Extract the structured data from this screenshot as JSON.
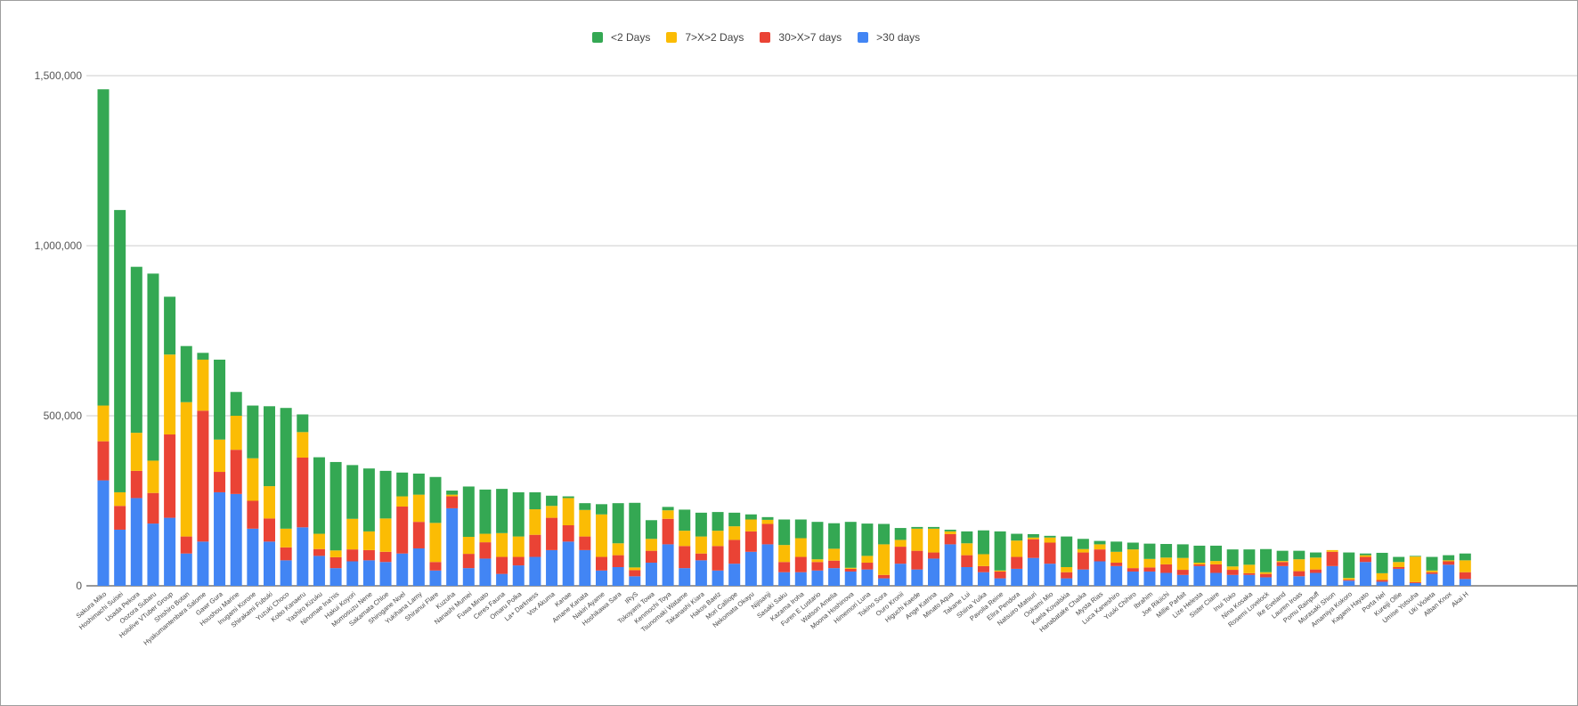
{
  "chart_data": {
    "type": "bar",
    "stacked": true,
    "title": "",
    "xlabel": "",
    "ylabel": "",
    "ylim": [
      0,
      1500000
    ],
    "yticks": [
      0,
      500000,
      1000000,
      1500000
    ],
    "ytick_labels": [
      "0",
      "500,000",
      "1,000,000",
      "1,500,000"
    ],
    "grid": true,
    "legend_position": "top-center",
    "categories": [
      "Sakura Miko",
      "Hoshimachi Suisei",
      "Usada Pekora",
      "Oozora Subaru",
      "Hololive VTuber Group",
      "Shishiro Botan",
      "Hyakumantenbara Salome",
      "Gawr Gura",
      "Houshou Marine",
      "Inugami Korone",
      "Shirakami Fubuki",
      "Yuzuki Choco",
      "Kobo Kanaeru",
      "Yashiro Kizuku",
      "Ninomae Ina'nis",
      "Hakui Koyori",
      "Momosuzu Nene",
      "Sakamata Chloe",
      "Shirogane Noel",
      "Yukihana Lamy",
      "Shiranui Flare",
      "Kuzuha",
      "Nanashi Mumei",
      "Fuwa Minato",
      "Ceres Fauna",
      "Omaru Polka",
      "La+ Darkness",
      "Vox Akuma",
      "Kanae",
      "Amane Kanata",
      "Nakiri Ayame",
      "Hoshikawa Sara",
      "IRyS",
      "Tokoyami Towa",
      "Kenmochi Toya",
      "Tsunomaki Watame",
      "Takanashi Kiara",
      "Hakos Baelz",
      "Mori Calliope",
      "Nekomata Okayu",
      "Nijisanji",
      "Sasaki Saku",
      "Kazama Iroha",
      "Furen E Lustario",
      "Watson Amelia",
      "Moona Hoshinova",
      "Himemori Luna",
      "Tokino Sora",
      "Ouro Kronii",
      "Higuchi Kaede",
      "Ange Katrina",
      "Minato Aqua",
      "Takane Lui",
      "Shiina Yuika",
      "Pavolia Reine",
      "Elira Pendora",
      "Natsuiro Matsuri",
      "Ookami Mio",
      "Kaela Kovalskia",
      "Hanabatake Chaika",
      "Mysta Rias",
      "Luca Kaneshiro",
      "Yuuki Chihiro",
      "Ibrahim",
      "Joe Rikiichi",
      "Millie Parfait",
      "Lize Helesta",
      "Sister Claire",
      "Inui Toko",
      "Nina Kosaka",
      "Rosemi Lovelock",
      "Ike Eveland",
      "Lauren Iroas",
      "Pomu Rainpuff",
      "Murasaki Shion",
      "Amamiya Kokoro",
      "Kagami Hayato",
      "Porta Nel",
      "Kureiji Ollie",
      "Umise Yotsuha",
      "Uki Violeta",
      "Alban Knox",
      "Akai Haato"
    ],
    "xtick_labels": [
      "Sakura Miko",
      "Hoshimachi Suisei",
      "Usada Pekora",
      "Oozora Subaru",
      "Hololive VTuber Group",
      "Shishiro Botan",
      "Hyakumantenbara Salome",
      "Gawr Gura",
      "Houshou Marine",
      "Inugami Korone",
      "Shirakami Fubuki",
      "Yuzuki Choco",
      "Kobo Kanaeru",
      "Yashiro Kizuku",
      "Ninomae Ina'nis",
      "Hakui Koyori",
      "Momosuzu Nene",
      "Sakamata Chloe",
      "Shirogane Noel",
      "Yukihana Lamy",
      "Shiranui Flare",
      "Kuzuha",
      "Nanashi Mumei",
      "Fuwa Minato",
      "Ceres Fauna",
      "Omaru Polka",
      "La+ Darkness",
      "Vox Akuma",
      "Kanae",
      "Amane Kanata",
      "Nakiri Ayame",
      "Hoshikawa Sara",
      "IRyS",
      "Tokoyami Towa",
      "Kenmochi Toya",
      "Tsunomaki Watame",
      "Takanashi Kiara",
      "Hakos Baelz",
      "Mori Calliope",
      "Nekomata Okayu",
      "Nijisanji",
      "Sasaki Saku",
      "Kazama Iroha",
      "Furen E Lustario",
      "Watson Amelia",
      "Moona Hoshinova",
      "Himemori Luna",
      "Tokino Sora",
      "Ouro Kronii",
      "Higuchi Kaede",
      "Ange Katrina",
      "Minato Aqua",
      "Takane Lui",
      "Shiina Yuika",
      "Pavolia Reine",
      "Elira Pendora",
      "Natsuiro Matsuri",
      "Ookami Mio",
      "Kaela Kovalskia",
      "Hanabatake Chaika",
      "Mysta Rias",
      "Luca Kaneshiro",
      "Yuuki Chihiro",
      "Ibrahim",
      "Joe Rikiichi",
      "Millie Parfait",
      "Lize Helesta",
      "Sister Claire",
      "Inui Toko",
      "Nina Kosaka",
      "Rosemi Lovelock",
      "Ike Eveland",
      "Lauren Iroas",
      "Pomu Rainpuff",
      "Murasaki Shion",
      "Amamiya Kokoro",
      "Kagami Hayato",
      "Porta Nel",
      "Kureiji Ollie",
      "Umise Yotsuha",
      "Uki Violeta",
      "Alban Knox",
      "Akai H"
    ],
    "series": [
      {
        "name": ">30 days",
        "color": "#4285f4",
        "values": [
          310000,
          165000,
          258000,
          183000,
          200000,
          95000,
          130000,
          275000,
          270000,
          168000,
          130000,
          75000,
          172000,
          88000,
          52000,
          72000,
          75000,
          70000,
          95000,
          110000,
          45000,
          228000,
          52000,
          80000,
          35000,
          60000,
          85000,
          105000,
          130000,
          105000,
          45000,
          55000,
          28000,
          68000,
          122000,
          52000,
          75000,
          45000,
          65000,
          100000,
          122000,
          40000,
          40000,
          45000,
          52000,
          42000,
          48000,
          22000,
          65000,
          48000,
          80000,
          122000,
          55000,
          40000,
          22000,
          50000,
          82000,
          65000,
          22000,
          48000,
          72000,
          58000,
          42000,
          42000,
          38000,
          32000,
          58000,
          38000,
          32000,
          32000,
          25000,
          58000,
          28000,
          38000,
          58000,
          15000,
          70000,
          12000,
          50000,
          8000,
          35000,
          62000,
          20000
        ]
      },
      {
        "name": "30>X>7 days",
        "color": "#ea4335",
        "values": [
          115000,
          70000,
          80000,
          90000,
          245000,
          50000,
          385000,
          60000,
          130000,
          82000,
          68000,
          38000,
          205000,
          20000,
          32000,
          35000,
          30000,
          30000,
          138000,
          78000,
          25000,
          35000,
          42000,
          48000,
          50000,
          25000,
          65000,
          95000,
          48000,
          40000,
          40000,
          35000,
          18000,
          35000,
          75000,
          65000,
          20000,
          72000,
          70000,
          60000,
          60000,
          30000,
          45000,
          25000,
          22000,
          8000,
          20000,
          10000,
          50000,
          55000,
          18000,
          30000,
          35000,
          18000,
          20000,
          35000,
          55000,
          62000,
          18000,
          50000,
          35000,
          10000,
          10000,
          12000,
          25000,
          15000,
          5000,
          25000,
          15000,
          5000,
          10000,
          12000,
          15000,
          10000,
          42000,
          3000,
          15000,
          5000,
          5000,
          3000,
          5000,
          10000,
          20000
        ]
      },
      {
        "name": "7>X>2 Days",
        "color": "#fbbc04",
        "values": [
          105000,
          40000,
          112000,
          95000,
          235000,
          395000,
          150000,
          95000,
          100000,
          125000,
          95000,
          55000,
          75000,
          45000,
          20000,
          90000,
          55000,
          98000,
          30000,
          80000,
          115000,
          5000,
          50000,
          25000,
          70000,
          60000,
          75000,
          35000,
          80000,
          78000,
          125000,
          35000,
          8000,
          35000,
          25000,
          45000,
          50000,
          45000,
          40000,
          35000,
          12000,
          50000,
          55000,
          8000,
          35000,
          3000,
          20000,
          90000,
          20000,
          65000,
          70000,
          8000,
          35000,
          35000,
          3000,
          48000,
          5000,
          15000,
          15000,
          10000,
          15000,
          32000,
          55000,
          25000,
          20000,
          35000,
          5000,
          10000,
          10000,
          25000,
          5000,
          3000,
          35000,
          35000,
          5000,
          5000,
          5000,
          20000,
          15000,
          75000,
          5000,
          3000,
          35000
        ]
      },
      {
        "name": "<2 Days",
        "color": "#34a853",
        "values": [
          930000,
          830000,
          488000,
          550000,
          170000,
          165000,
          20000,
          235000,
          70000,
          155000,
          235000,
          355000,
          52000,
          225000,
          260000,
          158000,
          185000,
          140000,
          70000,
          62000,
          135000,
          12000,
          148000,
          130000,
          130000,
          130000,
          50000,
          30000,
          5000,
          20000,
          30000,
          118000,
          190000,
          55000,
          10000,
          62000,
          70000,
          55000,
          40000,
          15000,
          8000,
          75000,
          55000,
          110000,
          75000,
          135000,
          95000,
          60000,
          35000,
          5000,
          5000,
          5000,
          35000,
          70000,
          115000,
          20000,
          10000,
          5000,
          90000,
          30000,
          10000,
          30000,
          20000,
          45000,
          40000,
          40000,
          50000,
          45000,
          50000,
          45000,
          68000,
          30000,
          25000,
          15000,
          0,
          75000,
          5000,
          60000,
          15000,
          2000,
          40000,
          15000,
          20000
        ]
      }
    ]
  }
}
